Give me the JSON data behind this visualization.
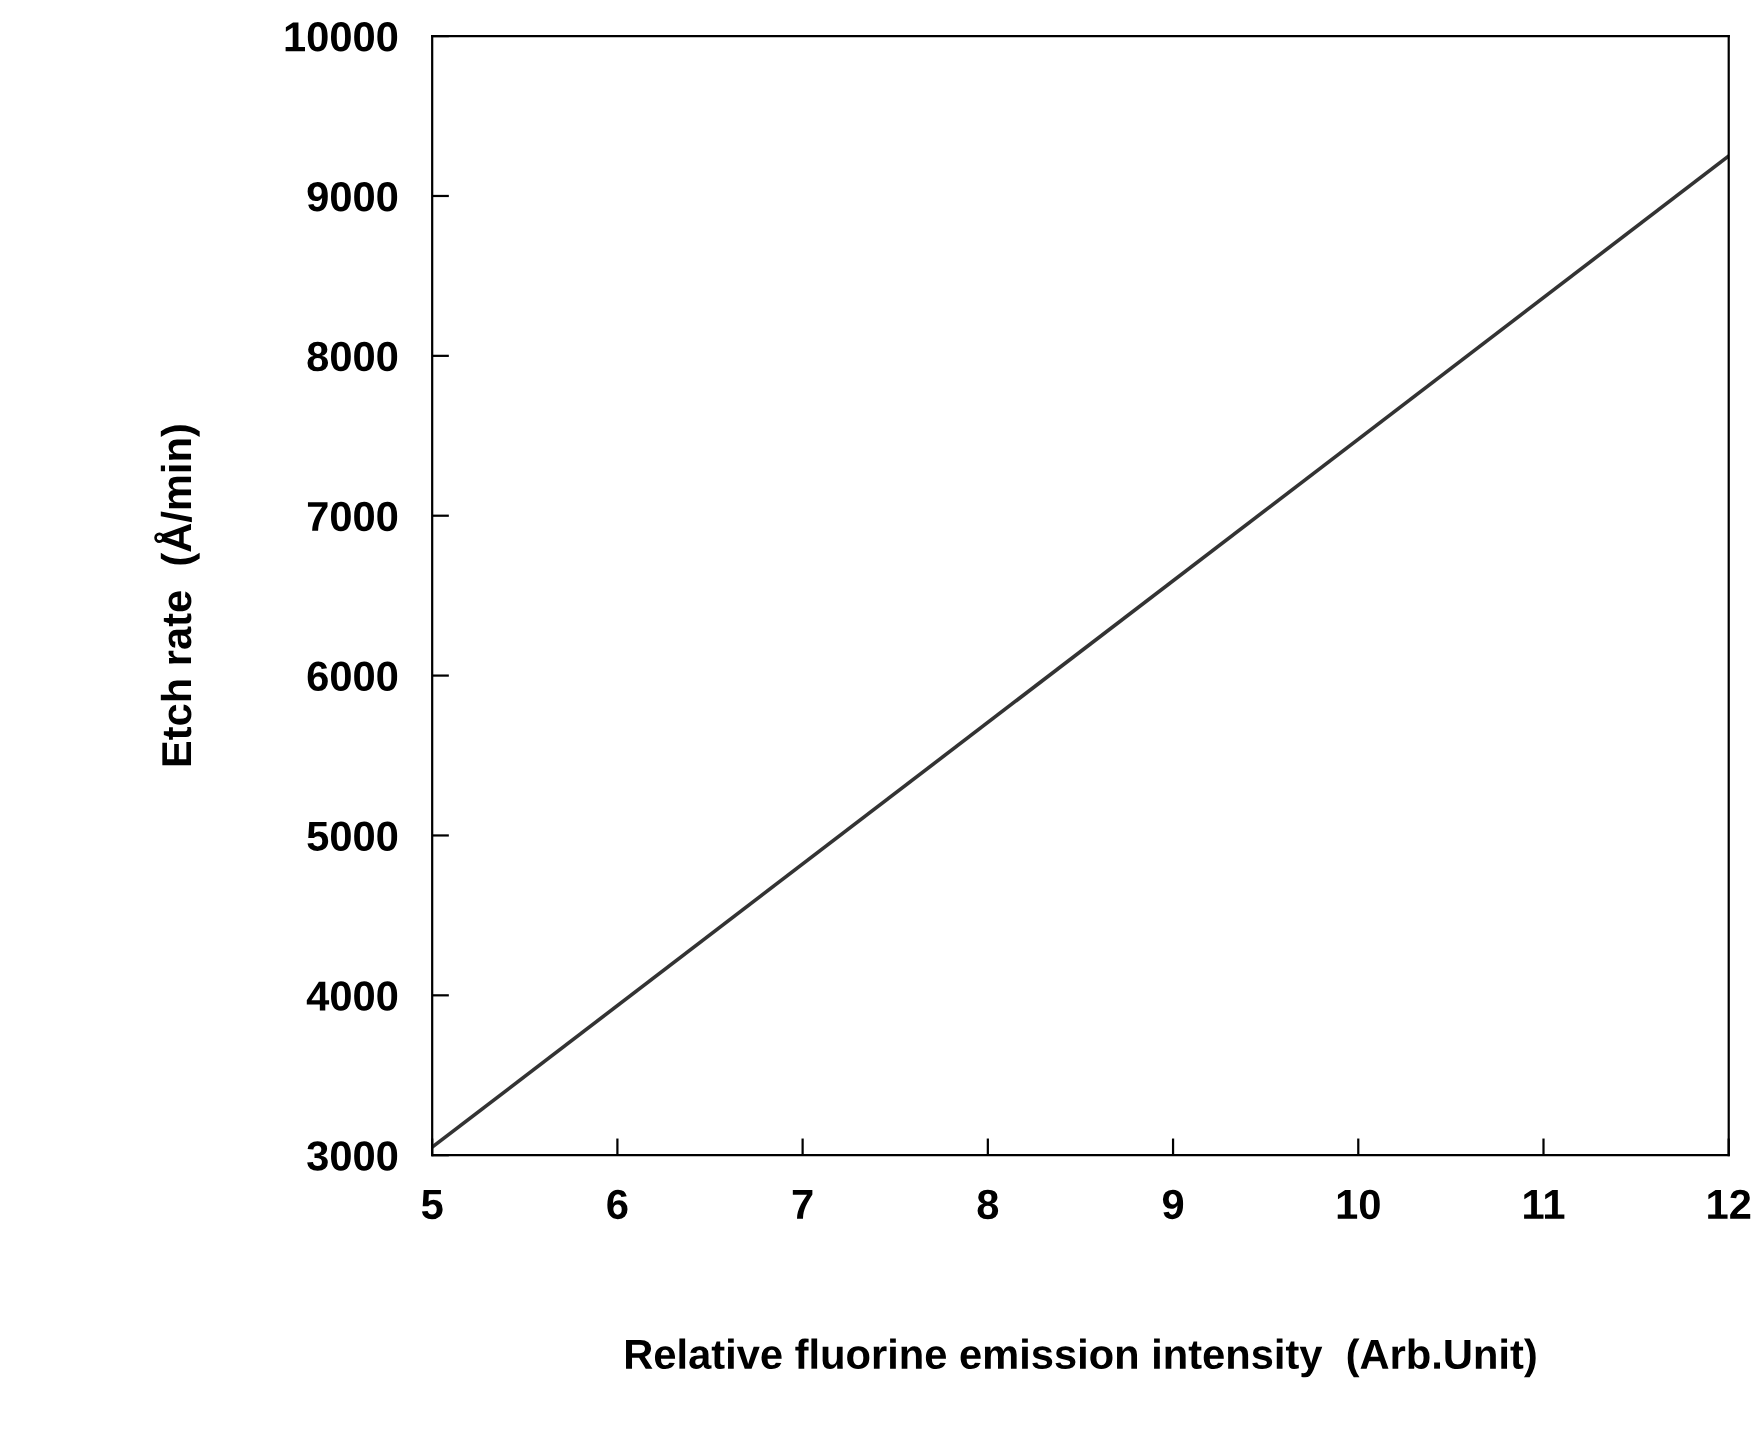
{
  "chart_data": {
    "type": "line",
    "xlabel": "Relative fluorine emission intensity  (Arb.Unit)",
    "ylabel": "Etch rate  (Å/min)",
    "x": [
      5,
      12
    ],
    "series": [
      {
        "color": "#333333",
        "values": [
          3050,
          9250
        ]
      }
    ],
    "xlim": [
      5,
      12
    ],
    "ylim": [
      3000,
      10000
    ],
    "xticks": [
      5,
      6,
      7,
      8,
      9,
      10,
      11,
      12
    ],
    "yticks": [
      3000,
      4000,
      5000,
      6000,
      7000,
      8000,
      9000,
      10000
    ],
    "grid": false,
    "legend": false,
    "marker": "none",
    "line_style": "solid"
  }
}
